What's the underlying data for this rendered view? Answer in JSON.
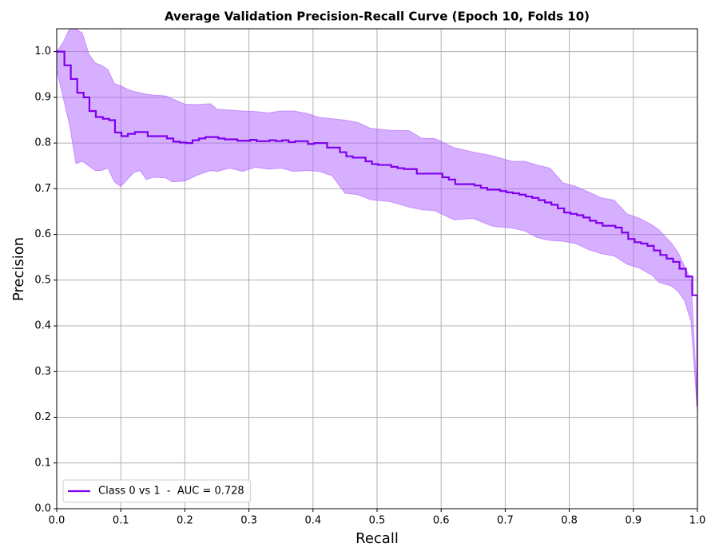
{
  "chart_data": {
    "type": "line",
    "title": "Average Validation Precision-Recall Curve (Epoch 10, Folds 10)",
    "x_label": "Recall",
    "y_label": "Precision",
    "xlim": [
      0,
      1
    ],
    "ylim": [
      0,
      1.05
    ],
    "xticks": [
      {
        "value": 0,
        "label": "0.0"
      },
      0.1,
      0.2,
      0.3,
      0.4,
      0.5,
      0.6,
      0.7,
      0.8,
      0.9,
      {
        "value": 1,
        "label": "1.0"
      }
    ],
    "yticks": [
      {
        "value": 0,
        "label": "0.0"
      },
      0.1,
      0.2,
      0.3,
      0.4,
      0.5,
      0.6,
      0.7,
      0.8,
      0.9,
      {
        "value": 1,
        "label": "1.0"
      }
    ],
    "grid": true,
    "step": "post",
    "legend_position": "lower left",
    "series": [
      {
        "name": "Class 0 vs 1  -  AUC = 0.728",
        "color": "#7f00ee",
        "band_color": "#b060ff",
        "x": [
          0,
          0.012,
          0.022,
          0.032,
          0.042,
          0.051,
          0.061,
          0.072,
          0.082,
          0.091,
          0.101,
          0.111,
          0.122,
          0.142,
          0.172,
          0.182,
          0.192,
          0.202,
          0.212,
          0.222,
          0.232,
          0.252,
          0.262,
          0.282,
          0.302,
          0.312,
          0.332,
          0.342,
          0.352,
          0.362,
          0.372,
          0.392,
          0.402,
          0.422,
          0.442,
          0.452,
          0.462,
          0.482,
          0.492,
          0.502,
          0.522,
          0.532,
          0.542,
          0.562,
          0.602,
          0.612,
          0.622,
          0.652,
          0.662,
          0.672,
          0.692,
          0.702,
          0.712,
          0.722,
          0.732,
          0.742,
          0.752,
          0.762,
          0.772,
          0.782,
          0.792,
          0.802,
          0.812,
          0.822,
          0.832,
          0.842,
          0.852,
          0.872,
          0.882,
          0.892,
          0.902,
          0.912,
          0.922,
          0.932,
          0.942,
          0.952,
          0.962,
          0.972,
          0.982,
          0.992,
          1.0
        ],
        "values": [
          1.0,
          0.97,
          0.94,
          0.91,
          0.9,
          0.87,
          0.857,
          0.853,
          0.85,
          0.823,
          0.815,
          0.82,
          0.824,
          0.815,
          0.81,
          0.803,
          0.801,
          0.8,
          0.806,
          0.81,
          0.813,
          0.81,
          0.808,
          0.805,
          0.807,
          0.804,
          0.806,
          0.804,
          0.806,
          0.802,
          0.804,
          0.798,
          0.8,
          0.79,
          0.78,
          0.771,
          0.768,
          0.76,
          0.754,
          0.752,
          0.748,
          0.745,
          0.743,
          0.733,
          0.725,
          0.72,
          0.71,
          0.707,
          0.702,
          0.698,
          0.695,
          0.692,
          0.69,
          0.687,
          0.683,
          0.68,
          0.675,
          0.67,
          0.665,
          0.657,
          0.648,
          0.645,
          0.642,
          0.637,
          0.63,
          0.625,
          0.619,
          0.615,
          0.604,
          0.59,
          0.583,
          0.58,
          0.575,
          0.565,
          0.555,
          0.547,
          0.54,
          0.525,
          0.508,
          0.467,
          0.225
        ],
        "band": {
          "x": [
            0,
            0.01,
            0.02,
            0.03,
            0.04,
            0.05,
            0.06,
            0.07,
            0.08,
            0.09,
            0.1,
            0.11,
            0.12,
            0.13,
            0.14,
            0.15,
            0.17,
            0.18,
            0.2,
            0.22,
            0.24,
            0.25,
            0.27,
            0.29,
            0.31,
            0.33,
            0.35,
            0.37,
            0.39,
            0.41,
            0.43,
            0.45,
            0.47,
            0.49,
            0.52,
            0.55,
            0.57,
            0.59,
            0.62,
            0.65,
            0.68,
            0.71,
            0.73,
            0.75,
            0.77,
            0.79,
            0.81,
            0.83,
            0.85,
            0.87,
            0.89,
            0.91,
            0.93,
            0.94,
            0.96,
            0.97,
            0.98,
            0.99,
            1.0
          ],
          "lower": [
            0.96,
            0.9,
            0.84,
            0.755,
            0.76,
            0.75,
            0.74,
            0.74,
            0.745,
            0.715,
            0.705,
            0.72,
            0.735,
            0.74,
            0.72,
            0.725,
            0.724,
            0.715,
            0.717,
            0.73,
            0.74,
            0.738,
            0.745,
            0.738,
            0.747,
            0.743,
            0.745,
            0.738,
            0.74,
            0.738,
            0.728,
            0.69,
            0.687,
            0.676,
            0.672,
            0.66,
            0.654,
            0.652,
            0.632,
            0.635,
            0.618,
            0.614,
            0.608,
            0.593,
            0.587,
            0.585,
            0.58,
            0.567,
            0.558,
            0.553,
            0.535,
            0.526,
            0.51,
            0.495,
            0.487,
            0.475,
            0.455,
            0.41,
            0.21
          ],
          "upper": [
            1.0,
            1.02,
            1.05,
            1.05,
            1.04,
            0.995,
            0.975,
            0.97,
            0.96,
            0.93,
            0.925,
            0.918,
            0.913,
            0.91,
            0.907,
            0.905,
            0.903,
            0.897,
            0.885,
            0.884,
            0.886,
            0.874,
            0.872,
            0.87,
            0.869,
            0.866,
            0.87,
            0.87,
            0.865,
            0.856,
            0.853,
            0.85,
            0.845,
            0.832,
            0.828,
            0.827,
            0.81,
            0.81,
            0.79,
            0.78,
            0.772,
            0.76,
            0.76,
            0.752,
            0.745,
            0.713,
            0.705,
            0.693,
            0.68,
            0.675,
            0.645,
            0.635,
            0.62,
            0.61,
            0.58,
            0.56,
            0.53,
            0.5,
            0.23
          ]
        }
      }
    ]
  }
}
